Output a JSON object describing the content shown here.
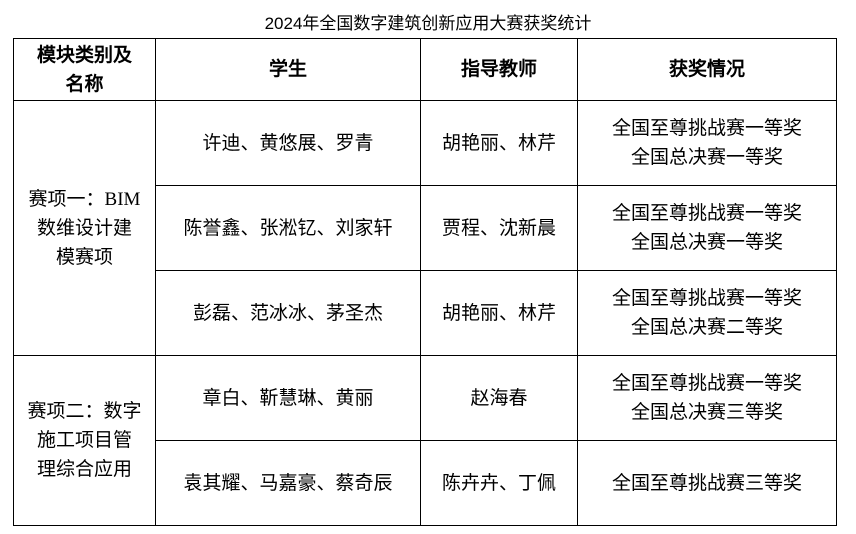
{
  "title": "2024年全国数字建筑创新应用大赛获奖统计",
  "headers": {
    "module": [
      "模块类别及",
      "名称"
    ],
    "students": "学生",
    "advisors": "指导教师",
    "awards": "获奖情况"
  },
  "groups": [
    {
      "module": [
        "赛项一：BIM",
        "数维设计建",
        "模赛项"
      ],
      "rows": [
        {
          "students": "许迪、黄悠展、罗青",
          "advisors": "胡艳丽、林芹",
          "awards": [
            "全国至尊挑战赛一等奖",
            "全国总决赛一等奖"
          ]
        },
        {
          "students": "陈誉鑫、张淞钇、刘家轩",
          "advisors": "贾程、沈新晨",
          "awards": [
            "全国至尊挑战赛一等奖",
            "全国总决赛一等奖"
          ]
        },
        {
          "students": "彭磊、范冰冰、茅圣杰",
          "advisors": "胡艳丽、林芹",
          "awards": [
            "全国至尊挑战赛一等奖",
            "全国总决赛二等奖"
          ]
        }
      ]
    },
    {
      "module": [
        "赛项二：数字",
        "施工项目管",
        "理综合应用"
      ],
      "rows": [
        {
          "students": "章白、靳慧琳、黄丽",
          "advisors": "赵海春",
          "awards": [
            "全国至尊挑战赛一等奖",
            "全国总决赛三等奖"
          ]
        },
        {
          "students": "袁其耀、马嘉豪、蔡奇辰",
          "advisors": "陈卉卉、丁佩",
          "awards": [
            "全国至尊挑战赛三等奖"
          ]
        }
      ]
    }
  ]
}
